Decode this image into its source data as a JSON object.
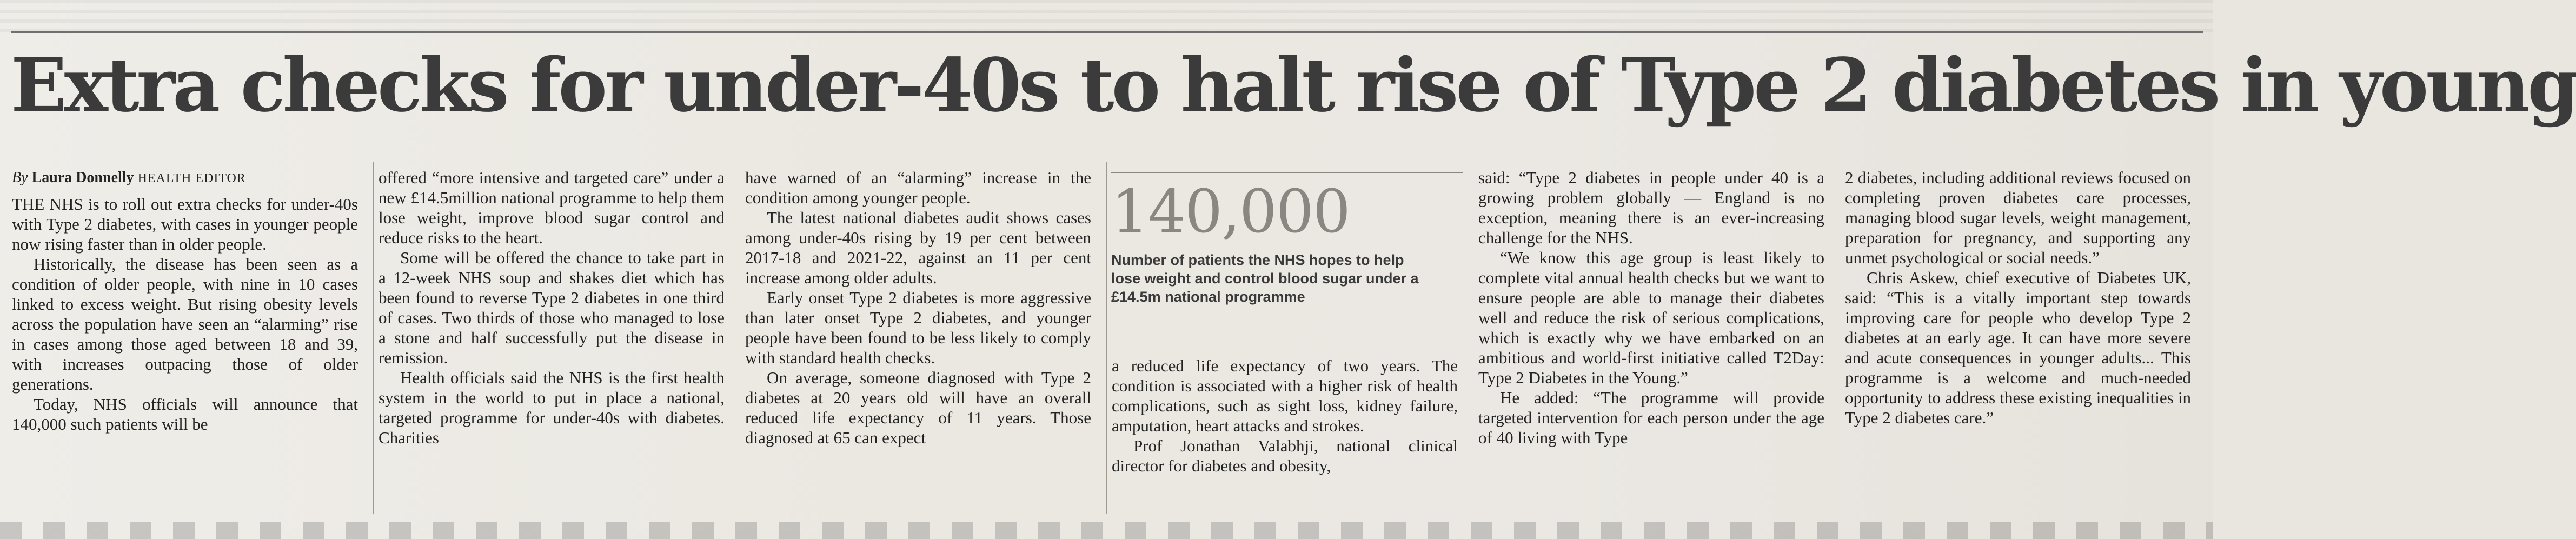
{
  "headline": "Extra checks for under-40s to halt rise of Type 2 diabetes in young",
  "byline": {
    "by": "By",
    "name": "Laura Donnelly",
    "role": "HEALTH EDITOR"
  },
  "columns": [
    [
      "THE NHS is to roll out extra checks for under-40s with Type 2 diabetes, with cases in younger people now rising faster than in older people.",
      "Historically, the disease has been seen as a condition of older people, with nine in 10 cases linked to excess weight. But rising obesity levels across the population have seen an “alarming” rise in cases among those aged between 18 and 39, with increases outpacing those of older generations.",
      "Today, NHS officials will announce that 140,000 such patients will be"
    ],
    [
      "offered “more intensive and targeted care” under a new £14.5million national programme to help them lose weight, improve blood sugar control and reduce risks to the heart.",
      "Some will be offered the chance to take part in a 12-week NHS soup and shakes diet which has been found to reverse Type 2 diabetes in one third of cases. Two thirds of those who managed to lose a stone and half successfully put the disease in remission.",
      "Health officials said the NHS is the first health system in the world to put in place a national, targeted programme for under-40s with diabetes. Charities"
    ],
    [
      "have warned of an “alarming” increase in the condition among younger people.",
      "The latest national diabetes audit shows cases among under-40s rising by 19 per cent between 2017-18 and 2021-22, against an 11 per cent increase among older adults.",
      "Early onset Type 2 diabetes is more aggressive than later onset Type 2 diabetes, and younger people have been found to be less likely to comply with standard health checks.",
      "On average, someone diagnosed with Type 2 diabetes at 20 years old will have an overall reduced life expectancy of 11 years. Those diagnosed at 65 can expect"
    ],
    [
      "a reduced life expectancy of two years. The condition is associated with a higher risk of health complications, such as sight loss, kidney failure, amputation, heart attacks and strokes.",
      "Prof Jonathan Valabhji, national clinical director for diabetes and obesity,"
    ],
    [
      "said: “Type 2 diabetes in people under 40 is a growing problem globally — England is no exception, meaning there is an ever-increasing challenge for the NHS.",
      "“We know this age group is least likely to complete vital annual health checks but we want to ensure people are able to manage their diabetes well and reduce the risk of serious complications, which is exactly why we have embarked on an ambitious and world-first initiative called T2Day: Type 2 Diabetes in the Young.”",
      "He added: “The programme will provide targeted intervention for each person under the age of 40 living with Type"
    ],
    [
      "2 diabetes, including additional reviews focused on completing proven diabetes care processes, managing blood sugar levels, weight management, preparation for pregnancy, and supporting any unmet psychological or social needs.”",
      "Chris Askew, chief executive of Diabetes UK, said: “This is a vitally important step towards improving care for people who develop Type 2 diabetes at an early age. It can have more severe and acute consequences in younger adults... This programme is a welcome and much-needed opportunity to address these existing inequalities in Type 2 diabetes care.”"
    ]
  ],
  "stat": {
    "number": "140,000",
    "caption": "Number of patients the NHS hopes to help lose weight and control blood sugar under a £14.5m national programme"
  }
}
